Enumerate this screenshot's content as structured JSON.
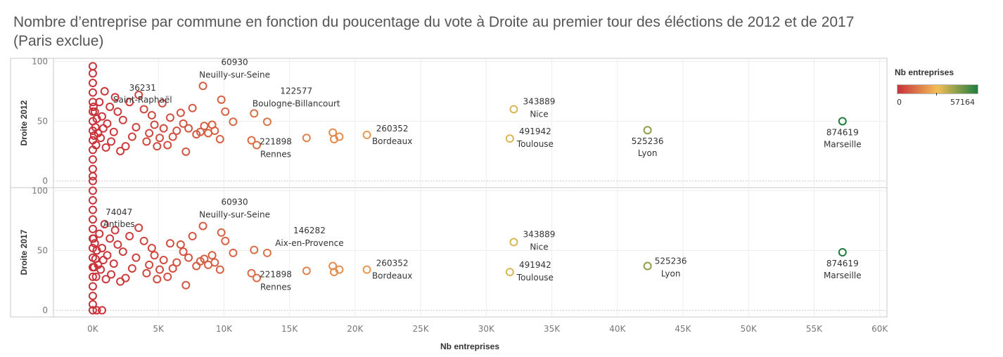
{
  "title": {
    "line1": "Nombre d’entreprise par commune en fonction du poucentage du vote à Droite au premier tour des éléctions de 2012 et de 2017",
    "line2": "(Paris exclue)"
  },
  "legend": {
    "title": "Nb entreprises",
    "min_label": "0",
    "max_label": "57164",
    "colors": [
      "#c8323a",
      "#f2be58",
      "#1e7d3e"
    ]
  },
  "chart_data": {
    "type": "scatter",
    "xlabel": "Nb entreprises",
    "xlim": [
      -3000,
      60500
    ],
    "xticks": [
      0,
      5000,
      10000,
      15000,
      20000,
      25000,
      30000,
      35000,
      40000,
      45000,
      50000,
      55000,
      60000
    ],
    "xtick_labels": [
      "0K",
      "5K",
      "10K",
      "15K",
      "20K",
      "25K",
      "30K",
      "35K",
      "40K",
      "45K",
      "50K",
      "55K",
      "60K"
    ],
    "color_scale": {
      "min": 0,
      "mid": 28582,
      "max": 57164
    },
    "panels": [
      {
        "ylabel": "Droite 2012",
        "ylim": [
          -5,
          102
        ],
        "yticks": [
          0,
          50,
          100
        ],
        "points": [
          {
            "x": 57164,
            "y": 50,
            "label": "Marseille",
            "value_label": "874619"
          },
          {
            "x": 42300,
            "y": 42.5,
            "label": "Lyon",
            "value_label": "525236"
          },
          {
            "x": 32100,
            "y": 60,
            "label": "Nice",
            "value_label": "343889"
          },
          {
            "x": 31800,
            "y": 35.5,
            "label": "Toulouse",
            "value_label": "491942"
          },
          {
            "x": 20900,
            "y": 38.5,
            "label": "Bordeaux",
            "value_label": "260352"
          },
          {
            "x": 12500,
            "y": 30,
            "label": "Rennes",
            "value_label": "221898"
          },
          {
            "x": 12300,
            "y": 56.5,
            "label": "Boulogne-Billancourt",
            "value_label": "122577"
          },
          {
            "x": 8400,
            "y": 79.5,
            "label": "Neuilly-sur-Seine",
            "value_label": "60930"
          },
          {
            "x": 5300,
            "y": 65,
            "label": "Saint-Raphaël",
            "value_label": "36231"
          },
          {
            "x": 18300,
            "y": 40.5
          },
          {
            "x": 18400,
            "y": 35
          },
          {
            "x": 18800,
            "y": 37
          },
          {
            "x": 16300,
            "y": 36
          },
          {
            "x": 13300,
            "y": 49.5
          },
          {
            "x": 12100,
            "y": 34
          },
          {
            "x": 10700,
            "y": 49.5
          },
          {
            "x": 10100,
            "y": 58
          },
          {
            "x": 9800,
            "y": 68
          },
          {
            "x": 9700,
            "y": 35
          },
          {
            "x": 9300,
            "y": 42
          },
          {
            "x": 9100,
            "y": 47
          },
          {
            "x": 8800,
            "y": 40
          },
          {
            "x": 8500,
            "y": 46
          },
          {
            "x": 8200,
            "y": 41
          },
          {
            "x": 7900,
            "y": 39
          },
          {
            "x": 7600,
            "y": 61
          },
          {
            "x": 7300,
            "y": 44
          },
          {
            "x": 7100,
            "y": 24.5
          },
          {
            "x": 6900,
            "y": 48
          },
          {
            "x": 6700,
            "y": 57
          },
          {
            "x": 6400,
            "y": 42
          },
          {
            "x": 6100,
            "y": 37
          },
          {
            "x": 5900,
            "y": 53
          },
          {
            "x": 5700,
            "y": 30
          },
          {
            "x": 5400,
            "y": 44
          },
          {
            "x": 5100,
            "y": 36
          },
          {
            "x": 4900,
            "y": 29
          },
          {
            "x": 4700,
            "y": 47
          },
          {
            "x": 4500,
            "y": 55
          },
          {
            "x": 4300,
            "y": 40
          },
          {
            "x": 4100,
            "y": 33
          },
          {
            "x": 3900,
            "y": 60
          },
          {
            "x": 3500,
            "y": 72
          },
          {
            "x": 3300,
            "y": 45
          },
          {
            "x": 3000,
            "y": 37
          },
          {
            "x": 2800,
            "y": 66
          },
          {
            "x": 2500,
            "y": 29
          },
          {
            "x": 2300,
            "y": 51
          },
          {
            "x": 2100,
            "y": 25
          },
          {
            "x": 1900,
            "y": 58
          },
          {
            "x": 1700,
            "y": 70
          },
          {
            "x": 1600,
            "y": 41
          },
          {
            "x": 1400,
            "y": 33
          },
          {
            "x": 1300,
            "y": 62
          },
          {
            "x": 1100,
            "y": 48
          },
          {
            "x": 1000,
            "y": 28
          },
          {
            "x": 900,
            "y": 75
          },
          {
            "x": 800,
            "y": 44
          },
          {
            "x": 700,
            "y": 54
          },
          {
            "x": 600,
            "y": 36
          },
          {
            "x": 500,
            "y": 66
          },
          {
            "x": 400,
            "y": 40
          },
          {
            "x": 300,
            "y": 52
          },
          {
            "x": 250,
            "y": 30
          },
          {
            "x": 200,
            "y": 45
          },
          {
            "x": 150,
            "y": 58
          },
          {
            "x": 100,
            "y": 38
          },
          {
            "x": 50,
            "y": 62
          },
          {
            "x": 0,
            "y": 96
          },
          {
            "x": 0,
            "y": 90
          },
          {
            "x": 0,
            "y": 82
          },
          {
            "x": 0,
            "y": 74
          },
          {
            "x": 0,
            "y": 66
          },
          {
            "x": 0,
            "y": 58
          },
          {
            "x": 0,
            "y": 50
          },
          {
            "x": 0,
            "y": 42
          },
          {
            "x": 0,
            "y": 34
          },
          {
            "x": 0,
            "y": 26
          },
          {
            "x": 0,
            "y": 18
          },
          {
            "x": 0,
            "y": 10
          },
          {
            "x": 0,
            "y": 4
          },
          {
            "x": 0,
            "y": 0
          }
        ]
      },
      {
        "ylabel": "Droite 2017",
        "ylim": [
          -5,
          102
        ],
        "yticks": [
          0,
          50,
          100
        ],
        "points": [
          {
            "x": 57164,
            "y": 48.5,
            "label": "Marseille",
            "value_label": "874619"
          },
          {
            "x": 42300,
            "y": 37,
            "label": "Lyon",
            "value_label": "525236"
          },
          {
            "x": 32100,
            "y": 57,
            "label": "Nice",
            "value_label": "343889"
          },
          {
            "x": 31800,
            "y": 32,
            "label": "Toulouse",
            "value_label": "491942"
          },
          {
            "x": 20900,
            "y": 34,
            "label": "Bordeaux",
            "value_label": "260352"
          },
          {
            "x": 12500,
            "y": 27,
            "label": "Rennes",
            "value_label": "221898"
          },
          {
            "x": 13300,
            "y": 48,
            "label": "Aix-en-Provence",
            "value_label": "146282"
          },
          {
            "x": 8400,
            "y": 70.5,
            "label": "Neuilly-sur-Seine",
            "value_label": "60930"
          },
          {
            "x": 3500,
            "y": 69,
            "label": "Antibes",
            "value_label": "74047"
          },
          {
            "x": 18300,
            "y": 37
          },
          {
            "x": 18400,
            "y": 32
          },
          {
            "x": 18800,
            "y": 34
          },
          {
            "x": 16300,
            "y": 33
          },
          {
            "x": 12300,
            "y": 50.5
          },
          {
            "x": 12100,
            "y": 31
          },
          {
            "x": 10700,
            "y": 48
          },
          {
            "x": 10100,
            "y": 58
          },
          {
            "x": 9800,
            "y": 65
          },
          {
            "x": 9700,
            "y": 34
          },
          {
            "x": 9300,
            "y": 40
          },
          {
            "x": 9100,
            "y": 46
          },
          {
            "x": 8800,
            "y": 38
          },
          {
            "x": 8500,
            "y": 43
          },
          {
            "x": 8200,
            "y": 41
          },
          {
            "x": 7900,
            "y": 37
          },
          {
            "x": 7600,
            "y": 62
          },
          {
            "x": 7300,
            "y": 44
          },
          {
            "x": 7100,
            "y": 21
          },
          {
            "x": 6900,
            "y": 49
          },
          {
            "x": 6700,
            "y": 55
          },
          {
            "x": 6400,
            "y": 40
          },
          {
            "x": 6100,
            "y": 35
          },
          {
            "x": 5900,
            "y": 56
          },
          {
            "x": 5700,
            "y": 28
          },
          {
            "x": 5400,
            "y": 42
          },
          {
            "x": 5100,
            "y": 34
          },
          {
            "x": 4900,
            "y": 26
          },
          {
            "x": 4700,
            "y": 46
          },
          {
            "x": 4500,
            "y": 52
          },
          {
            "x": 4300,
            "y": 38
          },
          {
            "x": 4100,
            "y": 31
          },
          {
            "x": 3900,
            "y": 58
          },
          {
            "x": 3300,
            "y": 44
          },
          {
            "x": 3000,
            "y": 35
          },
          {
            "x": 2800,
            "y": 62
          },
          {
            "x": 2500,
            "y": 27
          },
          {
            "x": 2300,
            "y": 49
          },
          {
            "x": 2100,
            "y": 24
          },
          {
            "x": 1900,
            "y": 55
          },
          {
            "x": 1700,
            "y": 67
          },
          {
            "x": 1600,
            "y": 39
          },
          {
            "x": 1400,
            "y": 30
          },
          {
            "x": 1300,
            "y": 60
          },
          {
            "x": 1100,
            "y": 46
          },
          {
            "x": 1000,
            "y": 26
          },
          {
            "x": 900,
            "y": 72
          },
          {
            "x": 800,
            "y": 42
          },
          {
            "x": 700,
            "y": 52
          },
          {
            "x": 600,
            "y": 34
          },
          {
            "x": 500,
            "y": 64
          },
          {
            "x": 400,
            "y": 38
          },
          {
            "x": 300,
            "y": 50
          },
          {
            "x": 250,
            "y": 28
          },
          {
            "x": 200,
            "y": 43
          },
          {
            "x": 150,
            "y": 56
          },
          {
            "x": 100,
            "y": 36
          },
          {
            "x": 50,
            "y": 60
          },
          {
            "x": 0,
            "y": 100
          },
          {
            "x": 0,
            "y": 92
          },
          {
            "x": 0,
            "y": 84
          },
          {
            "x": 0,
            "y": 76
          },
          {
            "x": 0,
            "y": 68
          },
          {
            "x": 0,
            "y": 60
          },
          {
            "x": 0,
            "y": 52
          },
          {
            "x": 0,
            "y": 44
          },
          {
            "x": 0,
            "y": 36
          },
          {
            "x": 0,
            "y": 28
          },
          {
            "x": 0,
            "y": 20
          },
          {
            "x": 0,
            "y": 12
          },
          {
            "x": 0,
            "y": 5
          },
          {
            "x": 0,
            "y": 0
          },
          {
            "x": 300,
            "y": 0
          },
          {
            "x": 700,
            "y": 0
          }
        ]
      }
    ]
  }
}
